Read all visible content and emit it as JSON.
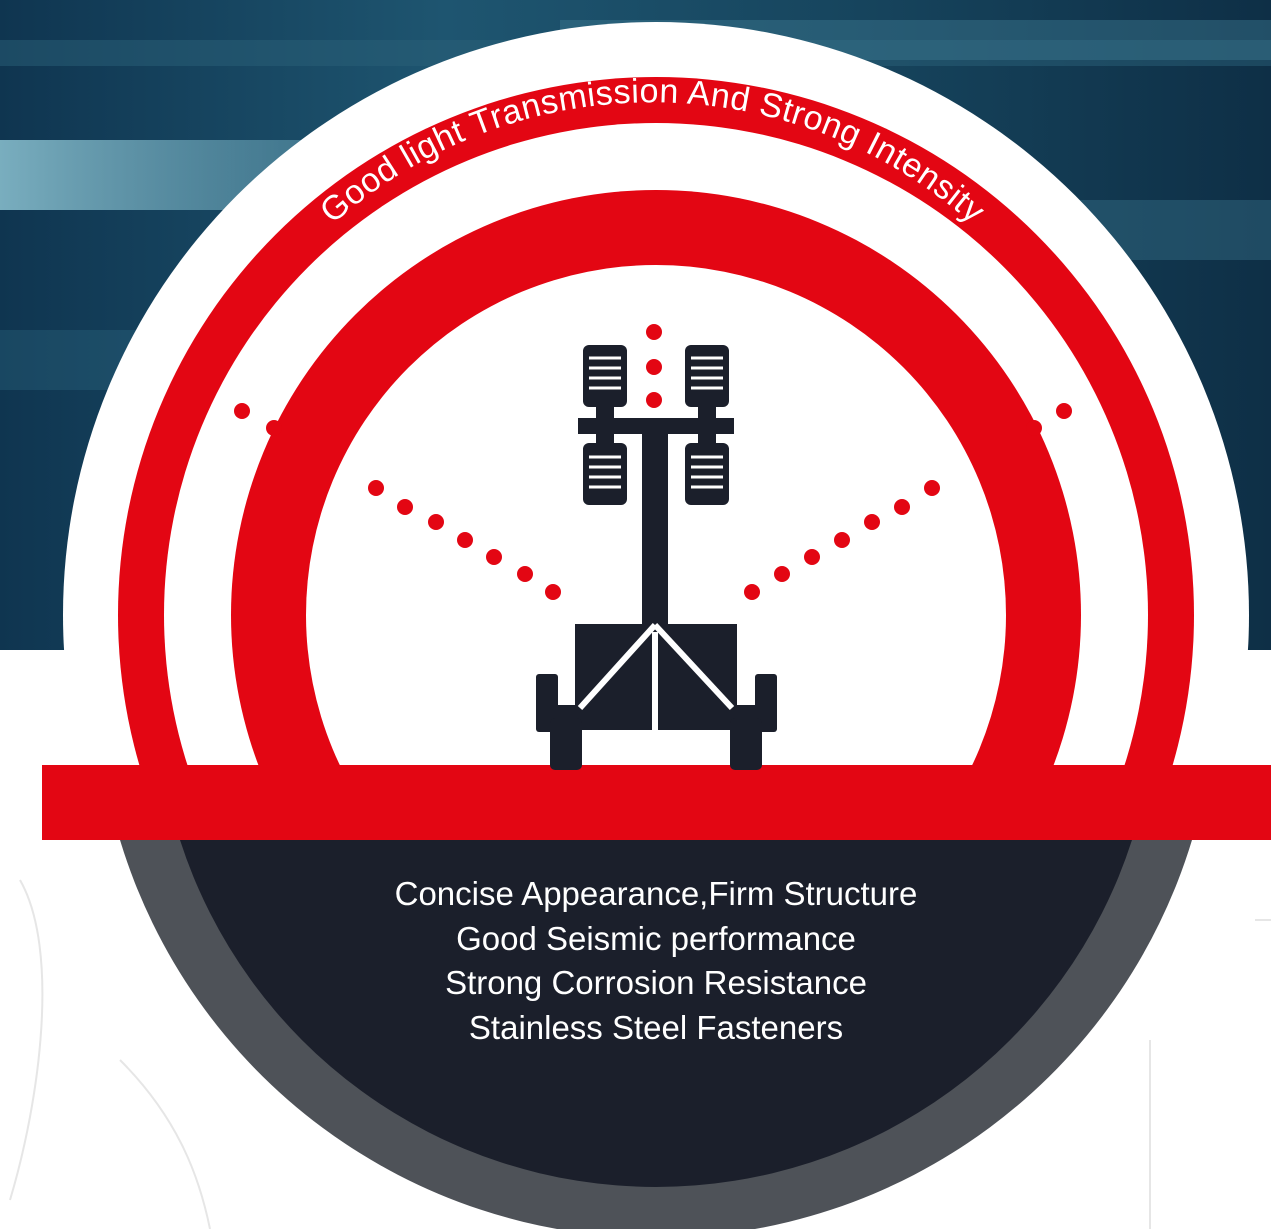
{
  "arc_heading": "Good light Transmission And Strong Intensity",
  "features": [
    "Concise Appearance,Firm Structure",
    "Good Seismic performance",
    "Strong Corrosion Resistance",
    "Stainless Steel Fasteners"
  ],
  "colors": {
    "sea_dark": "#0d3048",
    "sea_mid": "#2c6a82",
    "sea_light": "#7bb0c2",
    "red": "#e30613",
    "navy": "#1b1f2b",
    "gray_ring": "#4e5258",
    "white": "#ffffff"
  },
  "icons": [
    "light-tower-trailer-icon",
    "light-beam-dots"
  ]
}
